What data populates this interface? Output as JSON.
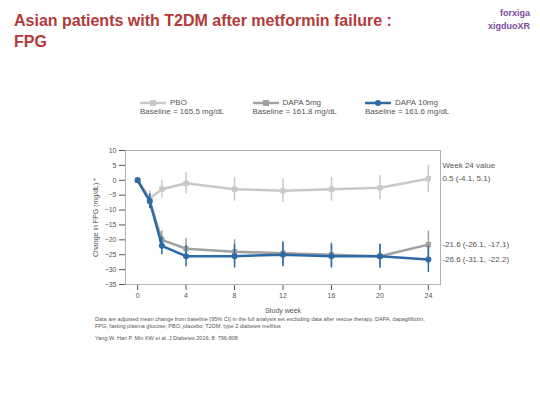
{
  "chart_data": {
    "type": "line",
    "title": "Asian patients with T2DM after metformin failure : FPG",
    "logos": [
      "forxiga",
      "xigduoXR"
    ],
    "x_label": "Study week",
    "y_label": "Change in FPG (mg/dL) *",
    "x": [
      0,
      1,
      2,
      4,
      8,
      12,
      16,
      20,
      24
    ],
    "xlim": [
      -1,
      25
    ],
    "xticks": [
      0,
      4,
      8,
      12,
      16,
      20,
      24
    ],
    "ylim": [
      -35,
      10
    ],
    "yticks": [
      10,
      5,
      0,
      -5,
      -10,
      -15,
      -20,
      -25,
      -30,
      -35
    ],
    "end_label_heading": "Week 24 value",
    "series": [
      {
        "name": "PBO",
        "label": "Baseline = 165.5 mg/dL",
        "color": "#c8c8c8",
        "marker": "square",
        "values": [
          0,
          -6,
          -3,
          -1,
          -3,
          -3.5,
          -3,
          -2.5,
          0.5
        ],
        "error": [
          0,
          2.5,
          3,
          3.5,
          4,
          4,
          4,
          4,
          4.6
        ],
        "end_label": "0.5 (-4.1, 5.1)"
      },
      {
        "name": "DAPA 5mg",
        "label": "Baseline = 161.8 mg/dL",
        "color": "#a0a0a0",
        "marker": "square",
        "values": [
          0,
          -7,
          -20,
          -23,
          -24,
          -24.5,
          -25,
          -25.5,
          -21.6
        ],
        "error": [
          0,
          2.5,
          3,
          3.5,
          4,
          4,
          4,
          4,
          4.5
        ],
        "end_label": "-21.6 (-26.1, -17.1)"
      },
      {
        "name": "DAPA 10mg",
        "label": "Baseline = 161.6 mg/dL",
        "color": "#2e6aa3",
        "marker": "circle",
        "values": [
          0,
          -7,
          -22,
          -25.5,
          -25.5,
          -25,
          -25.5,
          -25.5,
          -26.6
        ],
        "error": [
          0,
          2.5,
          3,
          3.5,
          4,
          4,
          4,
          4,
          4.4
        ],
        "end_label": "-26.6 (-31.1, -22.2)"
      }
    ],
    "footnotes": [
      "Data are adjusted mean change from baseline (95% CI) in the full analysis set excluding data after rescue therapy. DAPA, dapagliflozin; FPG, fasting plasma glucose; PBO, placebo; T2DM, type 2 diabetes mellitus",
      "Yang W, Han P, Min KW et al. J Diabetes 2016; 8: 796-808"
    ]
  }
}
